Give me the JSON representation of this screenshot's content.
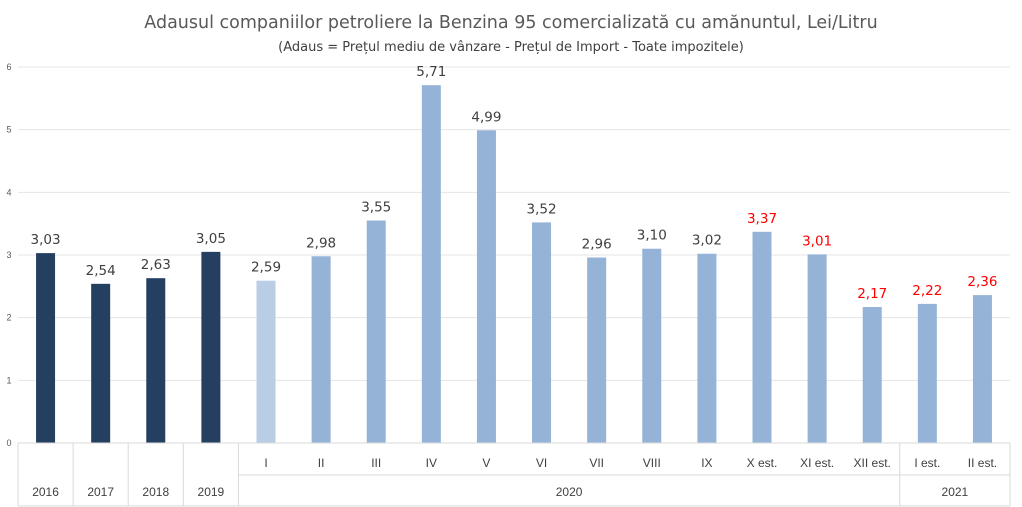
{
  "chart_data": {
    "type": "bar",
    "title": "Adausul companiilor petroliere la Benzina 95 comercializată cu amănuntul, Lei/Litru",
    "subtitle": "(Adaus = Prețul mediu de vânzare - Prețul de Import - Toate impozitele)",
    "categories": [
      "2016",
      "2017",
      "2018",
      "2019",
      "I",
      "II",
      "III",
      "IV",
      "V",
      "VI",
      "VII",
      "VIII",
      "IX",
      "X est.",
      "XI est.",
      "XII est.",
      "I est.",
      "II est."
    ],
    "values": [
      3.03,
      2.54,
      2.63,
      3.05,
      2.59,
      2.98,
      3.55,
      5.71,
      4.99,
      3.52,
      2.96,
      3.1,
      3.02,
      3.37,
      3.01,
      2.17,
      2.22,
      2.36
    ],
    "value_labels": [
      "3,03",
      "2,54",
      "2,63",
      "3,05",
      "2,59",
      "2,98",
      "3,55",
      "5,71",
      "4,99",
      "3,52",
      "2,96",
      "3,10",
      "3,02",
      "3,37",
      "3,01",
      "2,17",
      "2,22",
      "2,36"
    ],
    "label_colors": [
      "#404040",
      "#404040",
      "#404040",
      "#404040",
      "#404040",
      "#404040",
      "#404040",
      "#404040",
      "#404040",
      "#404040",
      "#404040",
      "#404040",
      "#404040",
      "#ff0000",
      "#ff0000",
      "#ff0000",
      "#ff0000",
      "#ff0000"
    ],
    "bar_colors": [
      "#243f60",
      "#243f60",
      "#243f60",
      "#243f60",
      "#b9cde5",
      "#95b3d7",
      "#95b3d7",
      "#95b3d7",
      "#95b3d7",
      "#95b3d7",
      "#95b3d7",
      "#95b3d7",
      "#95b3d7",
      "#95b3d7",
      "#95b3d7",
      "#95b3d7",
      "#95b3d7",
      "#95b3d7"
    ],
    "groups": [
      {
        "label": "2016",
        "start": 0,
        "end": 0
      },
      {
        "label": "2017",
        "start": 1,
        "end": 1
      },
      {
        "label": "2018",
        "start": 2,
        "end": 2
      },
      {
        "label": "2019",
        "start": 3,
        "end": 3
      },
      {
        "label": "2020",
        "start": 4,
        "end": 15
      },
      {
        "label": "2021",
        "start": 16,
        "end": 17
      }
    ],
    "show_inner_category_labels_from": 4,
    "yticks": [
      "0",
      "1",
      "2",
      "3",
      "4",
      "5",
      "6"
    ],
    "ylim": [
      0,
      6
    ],
    "grid": true,
    "xlabel": "",
    "ylabel": ""
  }
}
